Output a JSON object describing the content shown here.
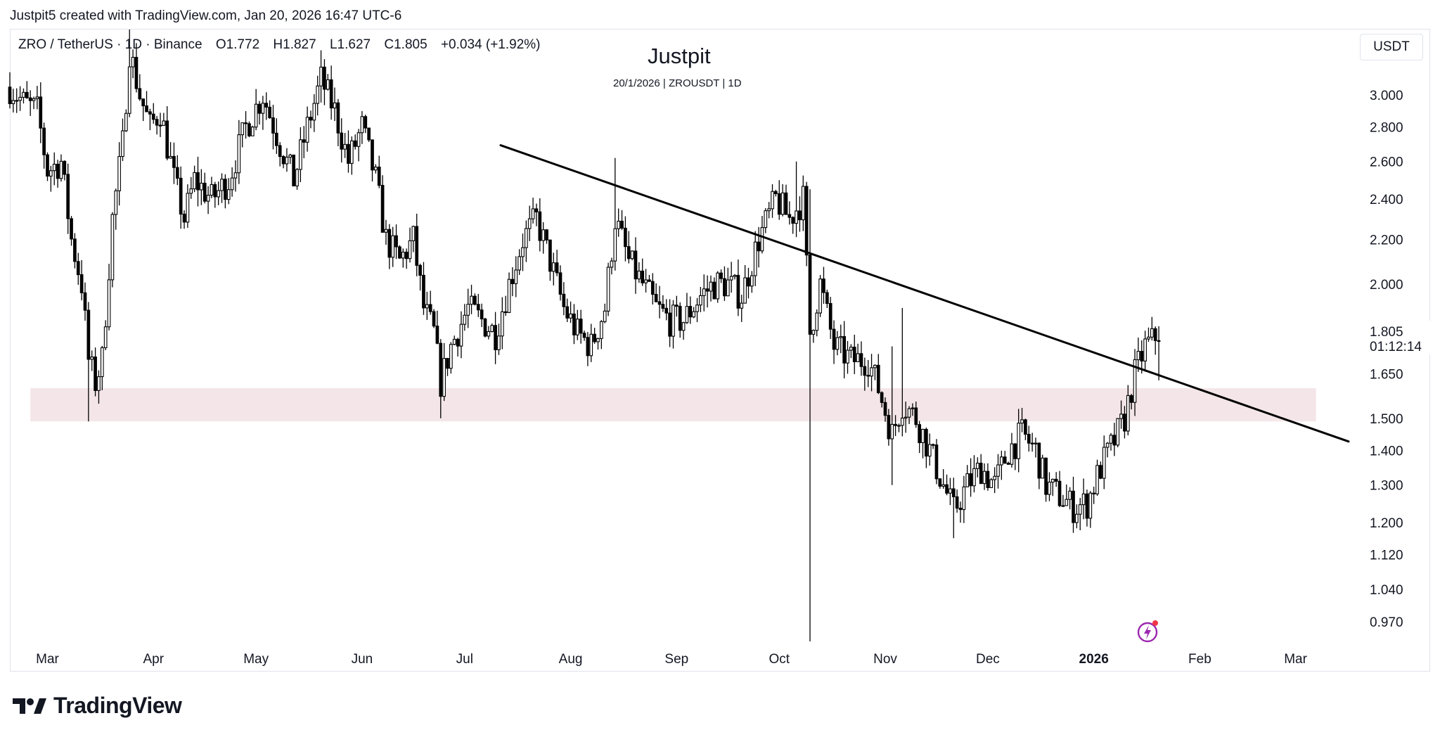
{
  "header": {
    "caption": "Justpit5 created with TradingView.com, Jan 20, 2026 16:47 UTC-6"
  },
  "legend": {
    "symbol": "ZRO / TetherUS · 1D · Binance",
    "open": "O1.772",
    "high": "H1.827",
    "low": "L1.627",
    "close": "C1.805",
    "change": "+0.034 (+1.92%)"
  },
  "watermark": {
    "title": "Justpit",
    "subtitle": "20/1/2026 | ZROUSDT | 1D"
  },
  "currency_button": "USDT",
  "price_label": {
    "value": "1.805",
    "countdown": "01:12:14"
  },
  "footer": {
    "brand": "TradingView"
  },
  "colors": {
    "candle": "#000000",
    "zone_fill": "#f4e6e8",
    "trendline": "#000000",
    "price_label_bg": "#ffffff",
    "flash_icon": "#9c27b0",
    "flash_dot": "#f23645"
  },
  "icons": {
    "logo": "tradingview-logo-icon",
    "flash": "lightning-icon"
  },
  "chart_data": {
    "type": "candlestick",
    "title": "Justpit",
    "subtitle": "20/1/2026 | ZROUSDT | 1D",
    "symbol": "ZROUSDT",
    "interval": "1D",
    "y_scale": "log",
    "ylim": [
      0.93,
      3.45
    ],
    "y_ticks": [
      "3.000",
      "2.800",
      "2.600",
      "2.400",
      "2.200",
      "2.000",
      "1.805",
      "1.650",
      "1.500",
      "1.400",
      "1.300",
      "1.200",
      "1.120",
      "1.040",
      "0.970"
    ],
    "x_labels": [
      "Mar",
      "Apr",
      "May",
      "Jun",
      "Jul",
      "Aug",
      "Sep",
      "Oct",
      "Nov",
      "Dec",
      "2026",
      "Feb",
      "Mar"
    ],
    "xlim": [
      "2025-02-18",
      "2026-03-20"
    ],
    "support_zone": {
      "from": "2025-02-24",
      "to": "2026-03-07",
      "low": 1.49,
      "high": 1.6
    },
    "trendline": {
      "points": [
        [
          "2025-03-20",
          3.6
        ],
        [
          "2026-03-13",
          1.44
        ]
      ],
      "extends_right": true
    },
    "last_price": 1.805,
    "close_path": [
      [
        "2025-02-18",
        3.05
      ],
      [
        "2025-02-22",
        2.95
      ],
      [
        "2025-02-26",
        2.9
      ],
      [
        "2025-03-01",
        2.55
      ],
      [
        "2025-03-05",
        2.6
      ],
      [
        "2025-03-08",
        2.2
      ],
      [
        "2025-03-11",
        2.0
      ],
      [
        "2025-03-13",
        1.7
      ],
      [
        "2025-03-15",
        1.62
      ],
      [
        "2025-03-17",
        1.7
      ],
      [
        "2025-03-20",
        2.3
      ],
      [
        "2025-03-23",
        2.7
      ],
      [
        "2025-03-25",
        3.3
      ],
      [
        "2025-03-28",
        3.0
      ],
      [
        "2025-03-31",
        2.8
      ],
      [
        "2025-04-03",
        2.9
      ],
      [
        "2025-04-07",
        2.5
      ],
      [
        "2025-04-10",
        2.3
      ],
      [
        "2025-04-13",
        2.5
      ],
      [
        "2025-04-18",
        2.4
      ],
      [
        "2025-04-23",
        2.5
      ],
      [
        "2025-04-28",
        2.8
      ],
      [
        "2025-05-03",
        3.0
      ],
      [
        "2025-05-08",
        2.7
      ],
      [
        "2025-05-12",
        2.5
      ],
      [
        "2025-05-16",
        2.8
      ],
      [
        "2025-05-20",
        3.1
      ],
      [
        "2025-05-24",
        2.9
      ],
      [
        "2025-05-28",
        2.6
      ],
      [
        "2025-06-01",
        2.8
      ],
      [
        "2025-06-05",
        2.5
      ],
      [
        "2025-06-08",
        2.2
      ],
      [
        "2025-06-12",
        2.1
      ],
      [
        "2025-06-16",
        2.2
      ],
      [
        "2025-06-19",
        1.9
      ],
      [
        "2025-06-22",
        1.8
      ],
      [
        "2025-06-24",
        1.62
      ],
      [
        "2025-06-27",
        1.75
      ],
      [
        "2025-07-02",
        1.9
      ],
      [
        "2025-07-06",
        1.85
      ],
      [
        "2025-07-10",
        1.8
      ],
      [
        "2025-07-14",
        2.0
      ],
      [
        "2025-07-18",
        2.2
      ],
      [
        "2025-07-22",
        2.3
      ],
      [
        "2025-07-26",
        2.1
      ],
      [
        "2025-07-30",
        1.9
      ],
      [
        "2025-08-03",
        1.8
      ],
      [
        "2025-08-07",
        1.75
      ],
      [
        "2025-08-11",
        1.9
      ],
      [
        "2025-08-14",
        2.3
      ],
      [
        "2025-08-18",
        2.1
      ],
      [
        "2025-08-22",
        2.0
      ],
      [
        "2025-08-26",
        1.9
      ],
      [
        "2025-08-30",
        1.85
      ],
      [
        "2025-09-03",
        1.85
      ],
      [
        "2025-09-08",
        1.95
      ],
      [
        "2025-09-12",
        2.0
      ],
      [
        "2025-09-16",
        2.0
      ],
      [
        "2025-09-20",
        1.95
      ],
      [
        "2025-09-25",
        2.2
      ],
      [
        "2025-09-30",
        2.4
      ],
      [
        "2025-10-04",
        2.3
      ],
      [
        "2025-10-08",
        2.4
      ],
      [
        "2025-10-10",
        1.8
      ],
      [
        "2025-10-13",
        2.0
      ],
      [
        "2025-10-17",
        1.75
      ],
      [
        "2025-10-22",
        1.7
      ],
      [
        "2025-10-27",
        1.7
      ],
      [
        "2025-10-30",
        1.6
      ],
      [
        "2025-11-03",
        1.45
      ],
      [
        "2025-11-06",
        1.55
      ],
      [
        "2025-11-10",
        1.5
      ],
      [
        "2025-11-14",
        1.4
      ],
      [
        "2025-11-18",
        1.3
      ],
      [
        "2025-11-21",
        1.23
      ],
      [
        "2025-11-25",
        1.3
      ],
      [
        "2025-11-29",
        1.35
      ],
      [
        "2025-12-03",
        1.3
      ],
      [
        "2025-12-07",
        1.4
      ],
      [
        "2025-12-11",
        1.45
      ],
      [
        "2025-12-15",
        1.4
      ],
      [
        "2025-12-18",
        1.3
      ],
      [
        "2025-12-22",
        1.27
      ],
      [
        "2025-12-26",
        1.24
      ],
      [
        "2025-12-30",
        1.25
      ],
      [
        "2026-01-03",
        1.35
      ],
      [
        "2026-01-07",
        1.43
      ],
      [
        "2026-01-10",
        1.5
      ],
      [
        "2026-01-13",
        1.65
      ],
      [
        "2026-01-16",
        1.75
      ],
      [
        "2026-01-18",
        1.77
      ],
      [
        "2026-01-20",
        1.805
      ]
    ],
    "wick_extremes": [
      [
        "2025-10-10",
        0.93,
        2.45
      ],
      [
        "2025-03-13",
        1.49,
        1.75
      ],
      [
        "2025-06-24",
        1.5,
        1.75
      ],
      [
        "2025-03-25",
        3.2,
        3.45
      ],
      [
        "2025-05-20",
        2.95,
        3.3
      ],
      [
        "2025-08-14",
        2.1,
        2.62
      ],
      [
        "2025-10-06",
        2.3,
        2.6
      ],
      [
        "2025-11-03",
        1.3,
        1.75
      ],
      [
        "2025-11-21",
        1.16,
        1.3
      ],
      [
        "2025-11-06",
        1.5,
        1.9
      ],
      [
        "2026-01-20",
        1.627,
        1.827
      ]
    ]
  }
}
